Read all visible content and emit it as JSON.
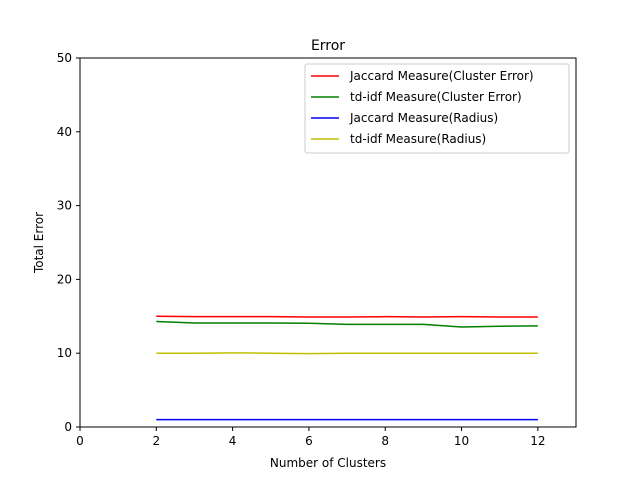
{
  "chart_data": {
    "type": "line",
    "title": "Error",
    "xlabel": "Number of Clusters",
    "ylabel": "Total Error",
    "xlim": [
      0,
      13
    ],
    "ylim": [
      0,
      50
    ],
    "xticks": [
      0,
      2,
      4,
      6,
      8,
      10,
      12
    ],
    "yticks": [
      0,
      10,
      20,
      30,
      40,
      50
    ],
    "grid": false,
    "legend_position": "top-right",
    "x": [
      2,
      3,
      4,
      5,
      6,
      7,
      8,
      9,
      10,
      11,
      12
    ],
    "series": [
      {
        "name": "Jaccard Measure(Cluster Error)",
        "color": "#ff0000",
        "values": [
          15.0,
          14.95,
          14.95,
          14.95,
          14.9,
          14.9,
          14.95,
          14.9,
          14.95,
          14.9,
          14.9
        ]
      },
      {
        "name": "td-idf Measure(Cluster Error)",
        "color": "#008000",
        "values": [
          14.3,
          14.1,
          14.1,
          14.1,
          14.05,
          13.9,
          13.9,
          13.9,
          13.55,
          13.65,
          13.7
        ]
      },
      {
        "name": "Jaccard Measure(Radius)",
        "color": "#0000ff",
        "values": [
          1.0,
          1.0,
          1.0,
          1.0,
          1.0,
          1.0,
          1.0,
          1.0,
          1.0,
          1.0,
          1.0
        ]
      },
      {
        "name": "td-idf Measure(Radius)",
        "color": "#bfbf00",
        "values": [
          10.0,
          10.0,
          10.05,
          10.0,
          9.95,
          10.0,
          10.0,
          10.0,
          10.0,
          10.0,
          10.0
        ]
      }
    ]
  }
}
